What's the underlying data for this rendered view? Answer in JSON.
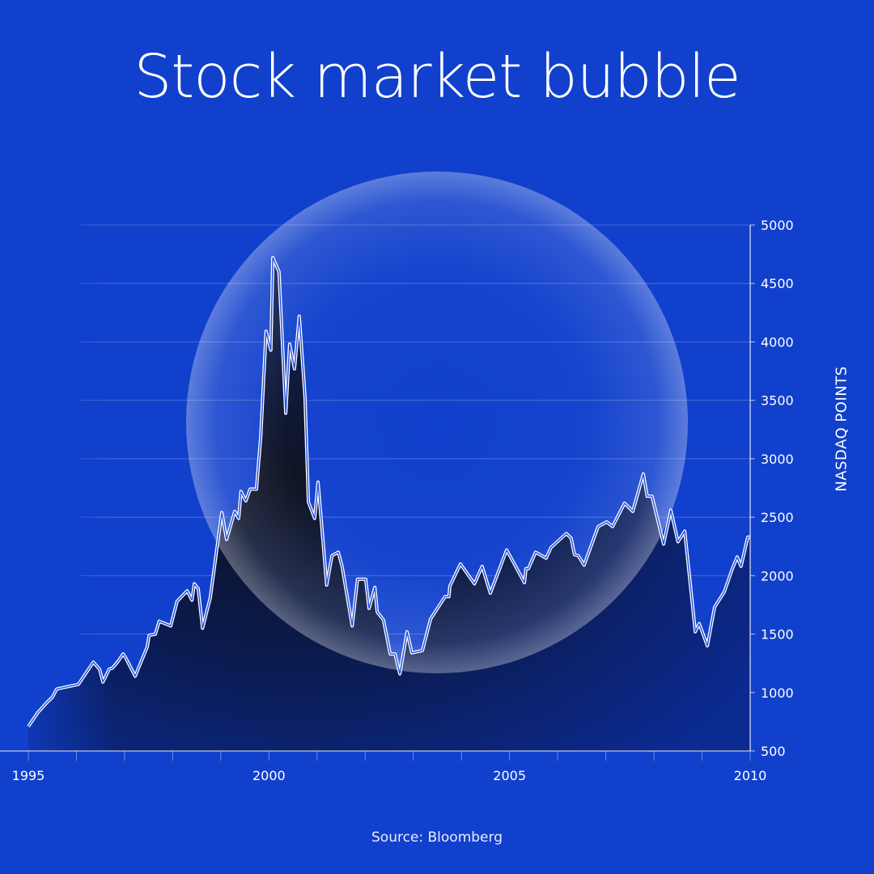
{
  "chart_data": {
    "type": "area",
    "title": "Stock market bubble",
    "ylabel": "NASDAQ POINTS",
    "source": "Source: Bloomberg",
    "xlim": [
      1995,
      2010
    ],
    "ylim": [
      500,
      5000
    ],
    "x_ticks": [
      1995,
      2000,
      2005,
      2010
    ],
    "y_ticks": [
      500,
      1000,
      1500,
      2000,
      2500,
      3000,
      3500,
      4000,
      4500,
      5000
    ],
    "y_axis_side": "right",
    "grid": "horizontal",
    "colors": {
      "background": "#1140cc",
      "line": "#ffffff",
      "fill": "#0c1229",
      "bubble": "#ffffff"
    },
    "x": [
      1995.0,
      1995.2,
      1995.42,
      1995.5,
      1995.59,
      1996.04,
      1996.35,
      1996.48,
      1996.55,
      1996.68,
      1996.75,
      1996.87,
      1996.97,
      1997.02,
      1997.22,
      1997.47,
      1997.51,
      1997.64,
      1997.72,
      1997.96,
      1998.09,
      1998.3,
      1998.4,
      1998.45,
      1998.53,
      1998.62,
      1998.78,
      1999.02,
      1999.12,
      1999.29,
      1999.37,
      1999.42,
      1999.52,
      1999.61,
      1999.74,
      1999.83,
      1999.94,
      2000.04,
      2000.08,
      2000.21,
      2000.35,
      2000.43,
      2000.53,
      2000.63,
      2000.75,
      2000.82,
      2000.95,
      2001.02,
      2001.2,
      2001.31,
      2001.44,
      2001.52,
      2001.73,
      2001.84,
      2002.01,
      2002.08,
      2002.2,
      2002.25,
      2002.38,
      2002.52,
      2002.62,
      2002.72,
      2002.87,
      2002.97,
      2003.19,
      2003.36,
      2003.66,
      2003.74,
      2003.76,
      2003.98,
      2004.27,
      2004.43,
      2004.6,
      2004.94,
      2005.31,
      2005.34,
      2005.39,
      2005.54,
      2005.76,
      2005.86,
      2006.18,
      2006.28,
      2006.35,
      2006.43,
      2006.55,
      2006.84,
      2007.02,
      2007.14,
      2007.39,
      2007.56,
      2007.78,
      2007.86,
      2007.96,
      2008.2,
      2008.35,
      2008.5,
      2008.64,
      2008.86,
      2008.94,
      2009.11,
      2009.26,
      2009.46,
      2009.63,
      2009.73,
      2009.81,
      2009.95,
      2010.0
    ],
    "values": [
      710,
      830,
      930,
      960,
      1030,
      1070,
      1260,
      1200,
      1090,
      1200,
      1210,
      1270,
      1330,
      1300,
      1140,
      1390,
      1490,
      1500,
      1610,
      1570,
      1780,
      1870,
      1790,
      1930,
      1890,
      1550,
      1810,
      2540,
      2310,
      2550,
      2490,
      2720,
      2640,
      2740,
      2740,
      3190,
      4090,
      3930,
      4720,
      4600,
      3390,
      3980,
      3770,
      4220,
      3530,
      2630,
      2490,
      2800,
      1920,
      2170,
      2200,
      2080,
      1570,
      1970,
      1970,
      1720,
      1900,
      1690,
      1620,
      1330,
      1330,
      1160,
      1520,
      1340,
      1360,
      1630,
      1820,
      1820,
      1910,
      2100,
      1930,
      2080,
      1850,
      2220,
      1940,
      2060,
      2060,
      2200,
      2150,
      2240,
      2360,
      2320,
      2180,
      2170,
      2090,
      2420,
      2460,
      2420,
      2620,
      2550,
      2870,
      2680,
      2680,
      2270,
      2560,
      2290,
      2380,
      1520,
      1590,
      1400,
      1730,
      1860,
      2060,
      2160,
      2080,
      2330,
      2330
    ]
  }
}
